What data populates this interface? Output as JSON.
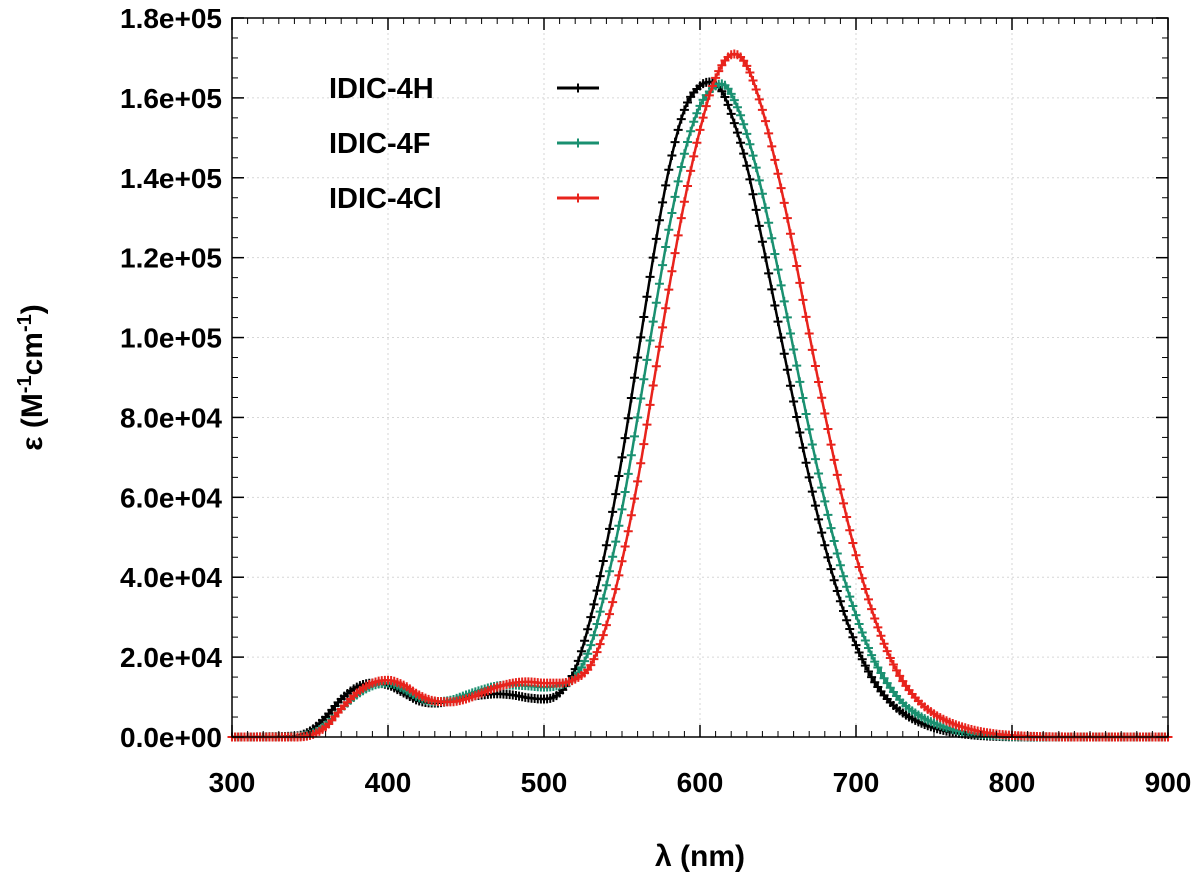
{
  "chart_data": {
    "type": "line",
    "title": "",
    "xlabel": "λ (nm)",
    "ylabel": "ε (M-1cm-1)",
    "xlim": [
      300,
      900
    ],
    "ylim": [
      0,
      180000
    ],
    "xticks": [
      300,
      400,
      500,
      600,
      700,
      800,
      900
    ],
    "yticks": [
      0,
      20000,
      40000,
      60000,
      80000,
      100000,
      120000,
      140000,
      160000,
      180000
    ],
    "xtick_labels": [
      "300",
      "400",
      "500",
      "600",
      "700",
      "800",
      "900"
    ],
    "ytick_labels": [
      "0.0e+00",
      "2.0e+04",
      "4.0e+04",
      "6.0e+04",
      "8.0e+04",
      "1.0e+05",
      "1.2e+05",
      "1.4e+05",
      "1.6e+05",
      "1.8e+05"
    ],
    "grid": true,
    "legend_position": "top-left",
    "marker": "+",
    "series": [
      {
        "name": "IDIC-4H",
        "color": "#000000",
        "x": [
          300,
          340,
          350,
          360,
          370,
          380,
          390,
          400,
          410,
          420,
          430,
          440,
          450,
          460,
          470,
          480,
          490,
          500,
          510,
          520,
          530,
          540,
          550,
          560,
          570,
          580,
          590,
          600,
          607,
          615,
          620,
          630,
          640,
          650,
          660,
          670,
          680,
          690,
          700,
          710,
          720,
          730,
          740,
          750,
          760,
          770,
          780,
          790,
          800,
          820,
          850,
          900
        ],
        "y": [
          0,
          200,
          1500,
          5000,
          9500,
          12500,
          13500,
          13000,
          11000,
          9000,
          8500,
          9000,
          10000,
          10500,
          10800,
          10500,
          9800,
          9500,
          11000,
          17000,
          30000,
          48000,
          70000,
          95000,
          120000,
          142000,
          157000,
          163000,
          164000,
          161000,
          156000,
          143000,
          124000,
          104000,
          84000,
          65000,
          48000,
          34000,
          23000,
          15000,
          9500,
          6000,
          3800,
          2300,
          1300,
          700,
          350,
          150,
          60,
          0,
          0,
          0
        ]
      },
      {
        "name": "IDIC-4F",
        "color": "#1a9070",
        "x": [
          300,
          340,
          350,
          360,
          370,
          380,
          390,
          400,
          410,
          420,
          430,
          440,
          450,
          460,
          470,
          480,
          490,
          500,
          510,
          520,
          530,
          540,
          550,
          560,
          570,
          580,
          590,
          600,
          610,
          614,
          620,
          630,
          640,
          650,
          660,
          670,
          680,
          690,
          700,
          710,
          720,
          730,
          740,
          750,
          760,
          770,
          780,
          790,
          800,
          820,
          850,
          900
        ],
        "y": [
          0,
          100,
          700,
          3000,
          7000,
          10500,
          12800,
          13500,
          12000,
          9800,
          8800,
          9200,
          10500,
          11800,
          12800,
          13000,
          12800,
          12500,
          13000,
          15000,
          23000,
          38000,
          57000,
          80000,
          104000,
          127000,
          146000,
          158000,
          163000,
          163500,
          161000,
          151000,
          136000,
          117000,
          97000,
          77000,
          59000,
          43000,
          30500,
          20500,
          13500,
          8500,
          5500,
          3500,
          2100,
          1200,
          650,
          330,
          150,
          30,
          0,
          0
        ]
      },
      {
        "name": "IDIC-4Cl",
        "color": "#e8231c",
        "x": [
          300,
          340,
          350,
          360,
          370,
          380,
          390,
          400,
          410,
          420,
          430,
          440,
          450,
          460,
          470,
          480,
          490,
          500,
          510,
          520,
          530,
          540,
          550,
          560,
          570,
          580,
          590,
          600,
          610,
          622,
          630,
          640,
          650,
          660,
          670,
          680,
          690,
          700,
          710,
          720,
          730,
          740,
          750,
          760,
          770,
          780,
          790,
          800,
          810,
          820,
          850,
          900
        ],
        "y": [
          0,
          0,
          400,
          2500,
          7000,
          11000,
          13500,
          14200,
          13000,
          10500,
          9000,
          8800,
          9500,
          11000,
          12500,
          13500,
          13800,
          13500,
          13500,
          14500,
          18000,
          28000,
          44000,
          64000,
          88000,
          112000,
          134000,
          152000,
          165000,
          171000,
          168000,
          157000,
          141000,
          122000,
          101000,
          81000,
          62000,
          45500,
          32000,
          21500,
          14000,
          9000,
          5800,
          3700,
          2300,
          1350,
          750,
          400,
          200,
          80,
          0,
          0
        ]
      }
    ]
  }
}
